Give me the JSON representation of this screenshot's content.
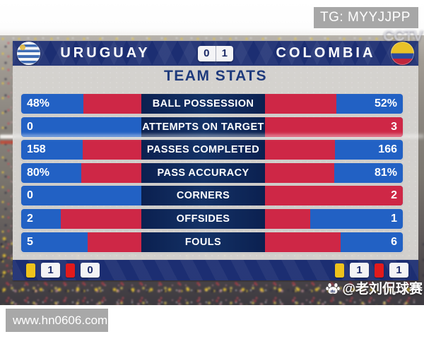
{
  "overlays": {
    "tg_badge": "TG: MYYJJPP",
    "site_badge": "www.hn0606.com",
    "watermark": "@老刘侃球赛",
    "broadcaster_watermark": "CCTV"
  },
  "scoreboard": {
    "home_team": "URUGUAY",
    "away_team": "COLOMBIA",
    "home_score": "0",
    "away_score": "1"
  },
  "panel": {
    "title": "TEAM STATS",
    "stats": [
      {
        "label": "BALL POSSESSION",
        "home": "48%",
        "away": "52%",
        "home_pct": 48,
        "away_pct": 52
      },
      {
        "label": "ATTEMPTS ON TARGET",
        "home": "0",
        "away": "3",
        "home_pct": 0,
        "away_pct": 100
      },
      {
        "label": "PASSES COMPLETED",
        "home": "158",
        "away": "166",
        "home_pct": 49,
        "away_pct": 51
      },
      {
        "label": "PASS ACCURACY",
        "home": "80%",
        "away": "81%",
        "home_pct": 50,
        "away_pct": 50
      },
      {
        "label": "CORNERS",
        "home": "0",
        "away": "2",
        "home_pct": 0,
        "away_pct": 100
      },
      {
        "label": "OFFSIDES",
        "home": "2",
        "away": "1",
        "home_pct": 67,
        "away_pct": 33
      },
      {
        "label": "FOULS",
        "home": "5",
        "away": "6",
        "home_pct": 45,
        "away_pct": 55
      }
    ],
    "cards": {
      "home": {
        "yellow": "1",
        "red": "0"
      },
      "away": {
        "yellow": "1",
        "red": "1"
      }
    }
  },
  "colors": {
    "header_navy": "#1c2e72",
    "label_navy": "#0f2a5c",
    "bar_blue": "#2261c4",
    "bar_red": "#ce2746",
    "panel_gray": "#d6d4d1",
    "yellow_card": "#efc31c",
    "red_card": "#e21a1c",
    "badge_gray": "#a7a7a7",
    "title_navy": "#1e3a7c"
  },
  "chart_data": {
    "type": "bar",
    "title": "TEAM STATS",
    "subtitle": "URUGUAY 0 - 1 COLOMBIA",
    "categories": [
      "BALL POSSESSION",
      "ATTEMPTS ON TARGET",
      "PASSES COMPLETED",
      "PASS ACCURACY",
      "CORNERS",
      "OFFSIDES",
      "FOULS"
    ],
    "series": [
      {
        "name": "URUGUAY",
        "values": [
          48,
          0,
          158,
          80,
          0,
          2,
          5
        ]
      },
      {
        "name": "COLOMBIA",
        "values": [
          52,
          3,
          166,
          81,
          2,
          1,
          6
        ]
      }
    ],
    "value_display": [
      [
        "48%",
        "52%"
      ],
      [
        "0",
        "3"
      ],
      [
        "158",
        "166"
      ],
      [
        "80%",
        "81%"
      ],
      [
        "0",
        "2"
      ],
      [
        "2",
        "1"
      ],
      [
        "5",
        "6"
      ]
    ],
    "layout": "horizontal-opposed-bars",
    "legend_position": "none",
    "cards": {
      "URUGUAY": {
        "yellow": 1,
        "red": 0
      },
      "COLOMBIA": {
        "yellow": 1,
        "red": 1
      }
    }
  }
}
